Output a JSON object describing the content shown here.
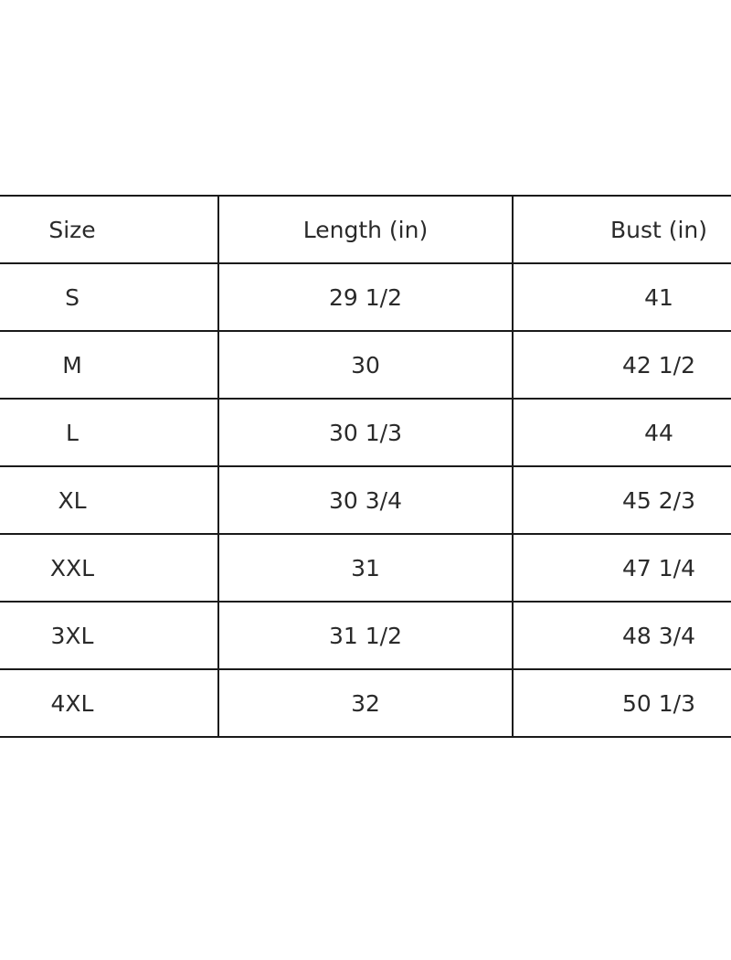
{
  "table": {
    "headers": [
      "Size",
      "Length (in)",
      "Bust (in)"
    ],
    "rows": [
      [
        "S",
        "29 1/2",
        "41"
      ],
      [
        "M",
        "30",
        "42 1/2"
      ],
      [
        "L",
        "30 1/3",
        "44"
      ],
      [
        "XL",
        "30 3/4",
        "45 2/3"
      ],
      [
        "XXL",
        "31",
        "47 1/4"
      ],
      [
        "3XL",
        "31 1/2",
        "48 3/4"
      ],
      [
        "4XL",
        "32",
        "50 1/3"
      ]
    ]
  }
}
